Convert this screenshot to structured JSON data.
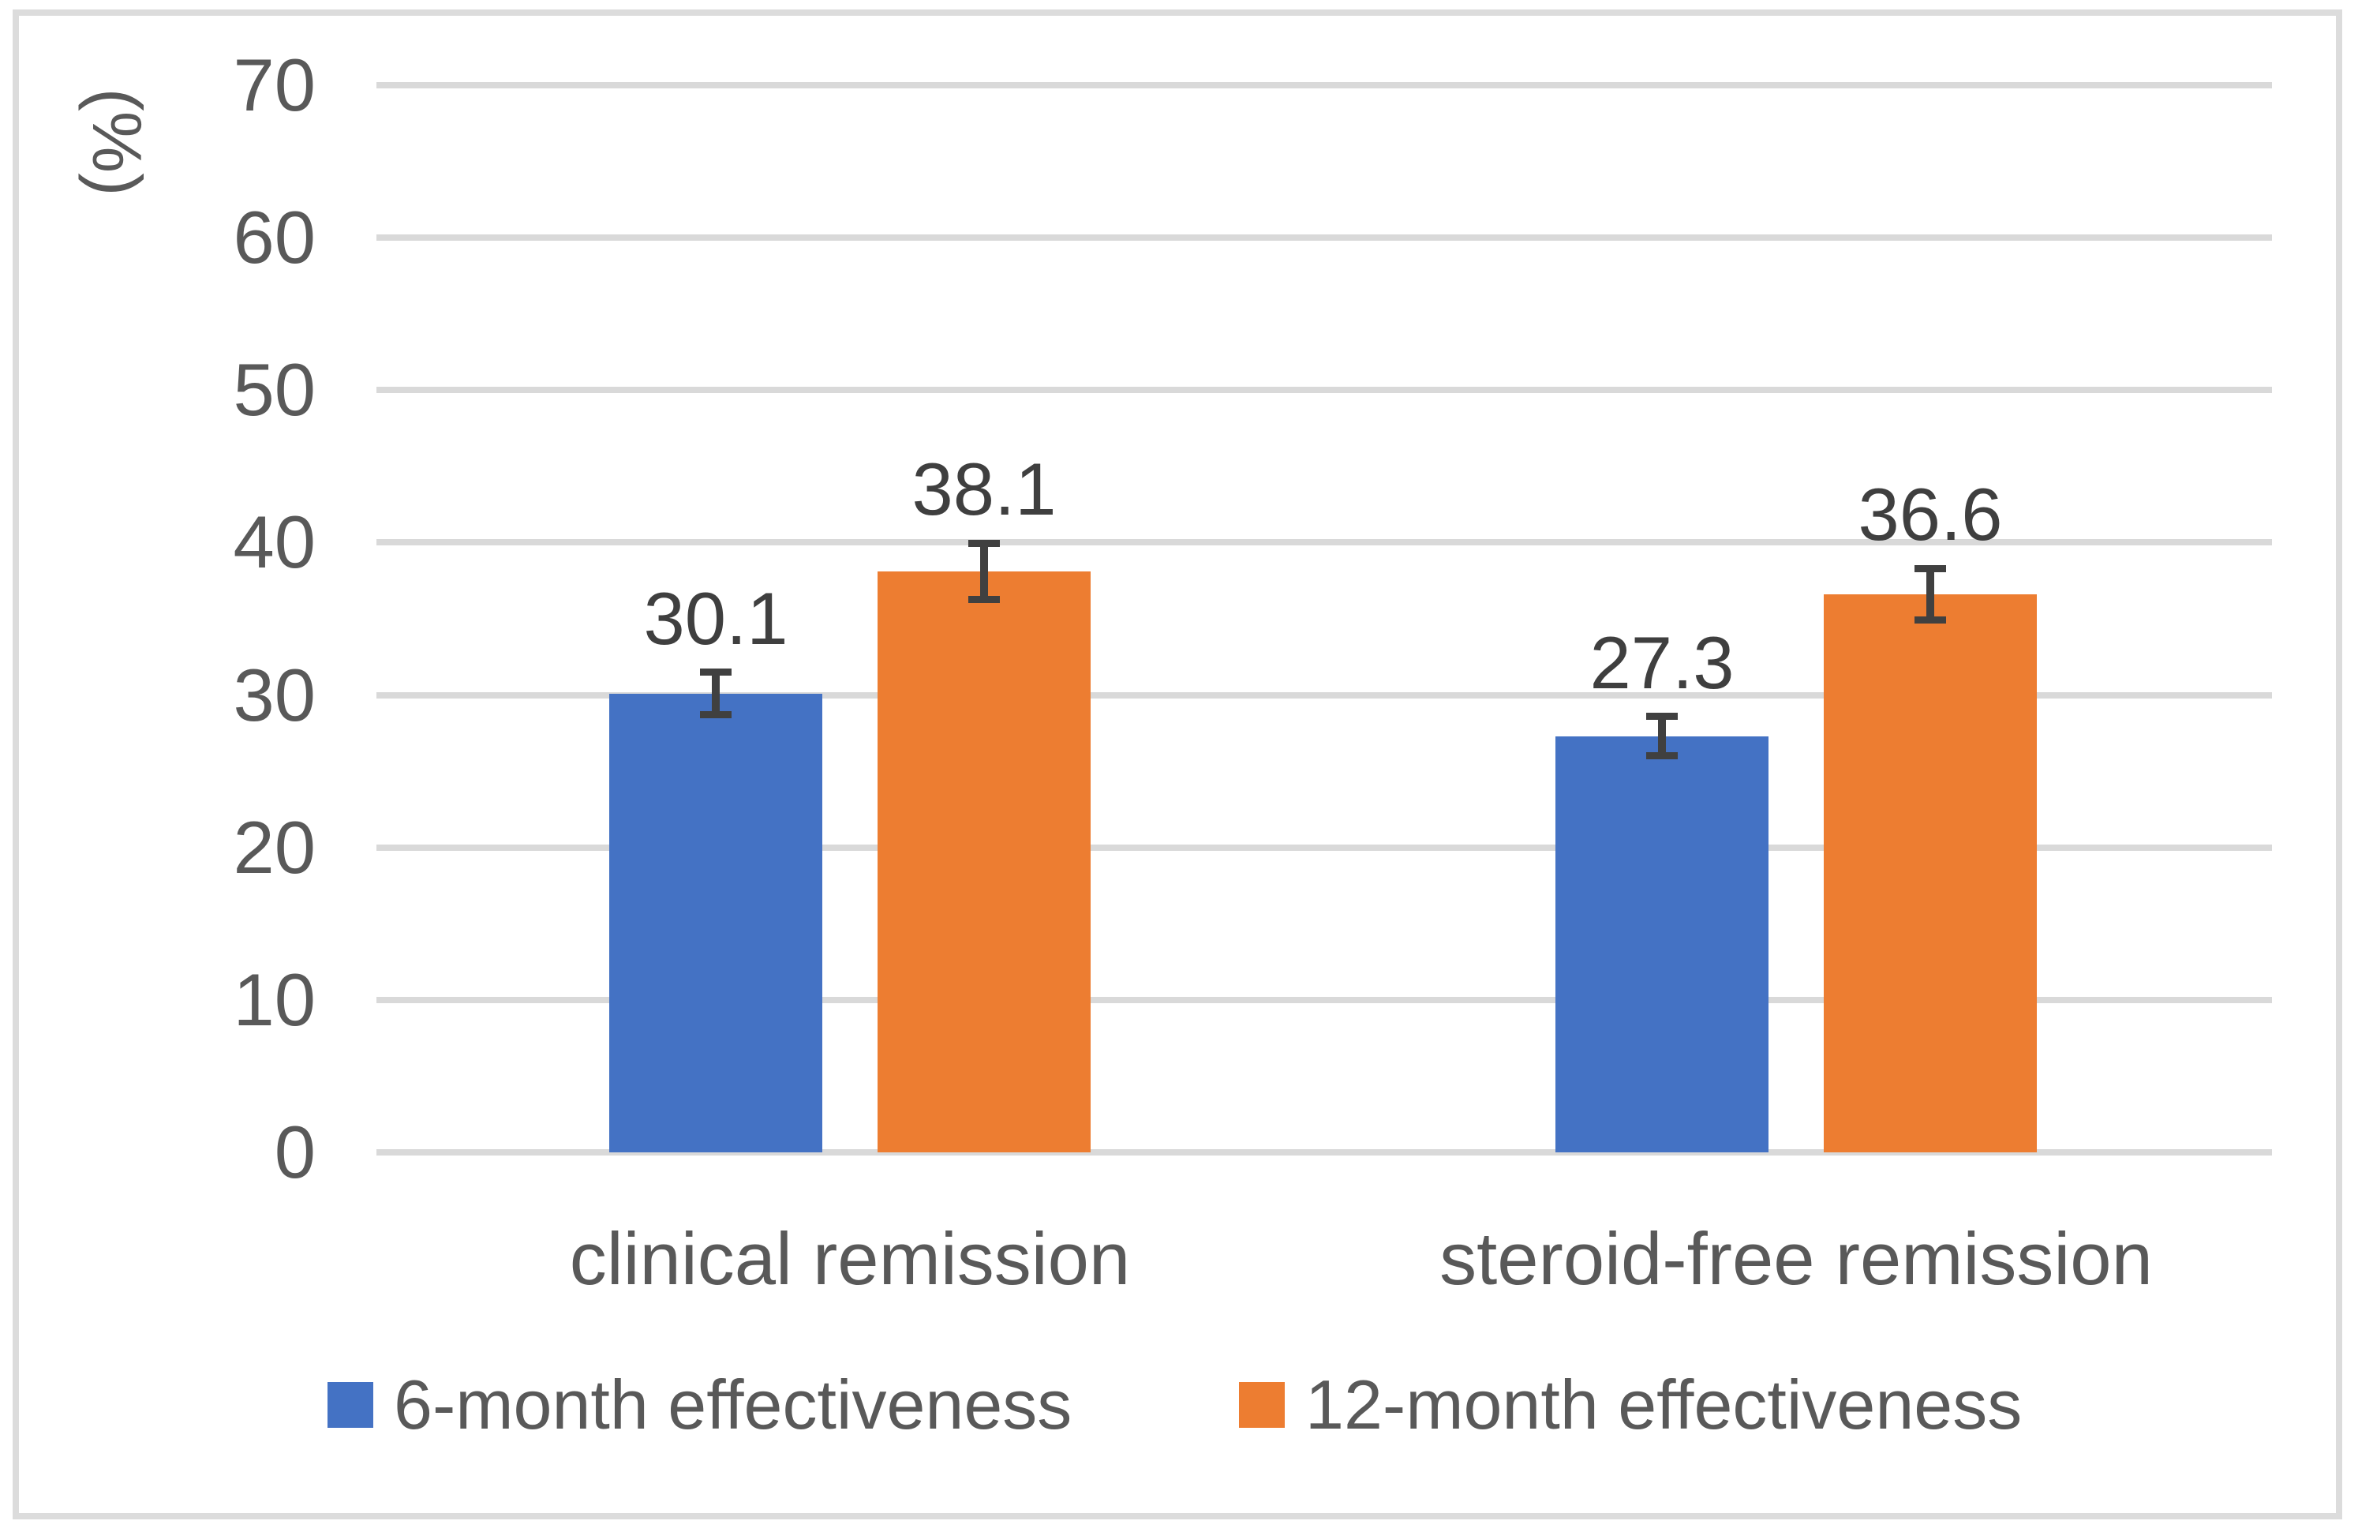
{
  "chart_data": {
    "type": "bar",
    "title": "",
    "ylabel": "(%)",
    "xlabel": "",
    "categories": [
      "clinical remission",
      "steroid-free remission"
    ],
    "series": [
      {
        "name": "6-month effectiveness",
        "color": "#4472C4",
        "values": [
          30.1,
          27.3
        ],
        "value_labels": [
          "30.1",
          "27.3"
        ],
        "error": [
          1.4,
          1.3
        ]
      },
      {
        "name": "12-month effectiveness",
        "color": "#ED7D31",
        "values": [
          38.1,
          36.6
        ],
        "value_labels": [
          "38.1",
          "36.6"
        ],
        "error": [
          1.85,
          1.7
        ]
      }
    ],
    "ylim": [
      0,
      70
    ],
    "yticks": [
      0,
      10,
      20,
      30,
      40,
      50,
      60,
      70
    ],
    "grid": true,
    "error_bars": true,
    "legend_position": "bottom",
    "colors": {
      "gridline": "#d9d9d9",
      "frame": "#dcdcdc",
      "axis_text": "#595959",
      "value_text": "#3f3f3f",
      "error_bar": "#404040"
    }
  }
}
